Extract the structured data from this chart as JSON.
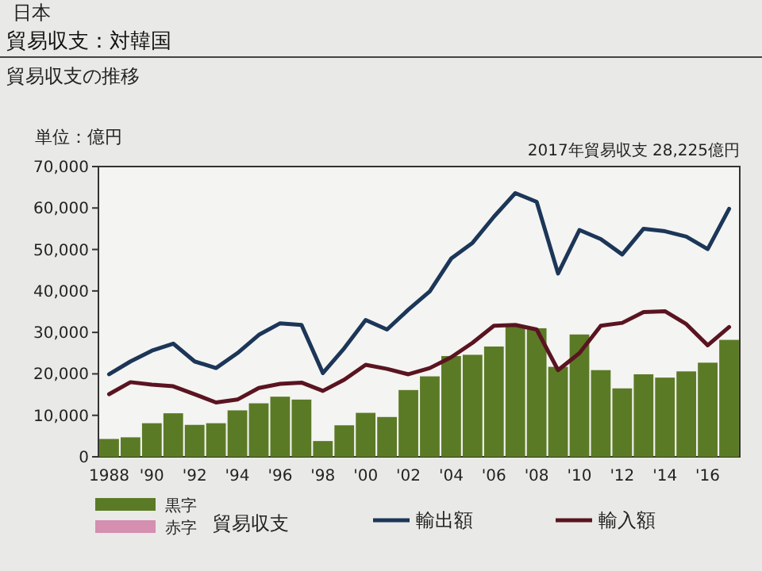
{
  "chart_data": {
    "type": "bar",
    "title": "貿易収支：対韓国",
    "subtitle": "貿易収支の推移",
    "ylabel": "単位：億円",
    "annotations": [
      "日本",
      "2017年貿易収支 28,225億円"
    ],
    "categories": [
      "1988",
      null,
      "'90",
      null,
      "'92",
      null,
      "'94",
      null,
      "'96",
      null,
      "'98",
      null,
      "'00",
      null,
      "'02",
      null,
      "'04",
      null,
      "'06",
      null,
      "'08",
      null,
      "'10",
      null,
      "'12",
      null,
      "'14",
      null,
      "'16",
      null
    ],
    "legend": "bottom",
    "legend_title": "貿易収支",
    "ylim": [
      0,
      70000
    ],
    "yticks": [
      0,
      {
        "value": 10000,
        "label": "10,000"
      },
      {
        "value": 20000,
        "label": "20,000"
      },
      {
        "value": 30000,
        "label": "30,000"
      },
      {
        "value": 40000,
        "label": "40,000"
      },
      {
        "value": 50000,
        "label": "50,000"
      },
      {
        "value": 60000,
        "label": "60,000"
      },
      {
        "value": 70000,
        "label": "70,000"
      }
    ],
    "series": [
      {
        "name": "黒字",
        "color": "#5b7a26",
        "values": [
          4300,
          4700,
          8100,
          10500,
          7700,
          8100,
          11200,
          12900,
          14500,
          13800,
          3800,
          7600,
          10600,
          9600,
          16100,
          19400,
          24300,
          24600,
          26600,
          31400,
          31000,
          21700,
          29500,
          20900,
          16500,
          19900,
          19100,
          20600,
          22700,
          28200
        ]
      },
      {
        "name": "赤字",
        "color": "#d58fb0",
        "values": [
          null,
          null,
          null,
          null,
          null,
          null,
          null,
          null,
          null,
          null,
          null,
          null,
          null,
          null,
          null,
          null,
          null,
          null,
          null,
          null,
          null,
          null,
          null,
          null,
          null,
          null,
          null,
          null,
          null,
          null
        ]
      },
      {
        "name": "輸出額",
        "type": "line",
        "color": "#1c3658",
        "values": [
          19900,
          23000,
          25600,
          27300,
          23000,
          21400,
          25000,
          29400,
          32200,
          31800,
          20200,
          26200,
          33000,
          30700,
          35500,
          39900,
          47800,
          51600,
          57900,
          63600,
          61500,
          44200,
          54700,
          52500,
          48800,
          55000,
          54400,
          53100,
          50100,
          59800
        ]
      },
      {
        "name": "輸入額",
        "type": "line",
        "color": "#5a1420",
        "values": [
          15100,
          18000,
          17400,
          17000,
          15100,
          13100,
          13800,
          16600,
          17600,
          17900,
          15900,
          18600,
          22200,
          21200,
          19900,
          21400,
          24000,
          27500,
          31600,
          31800,
          30700,
          20900,
          25000,
          31600,
          32300,
          34900,
          35100,
          32000,
          26900,
          31300
        ]
      }
    ]
  }
}
